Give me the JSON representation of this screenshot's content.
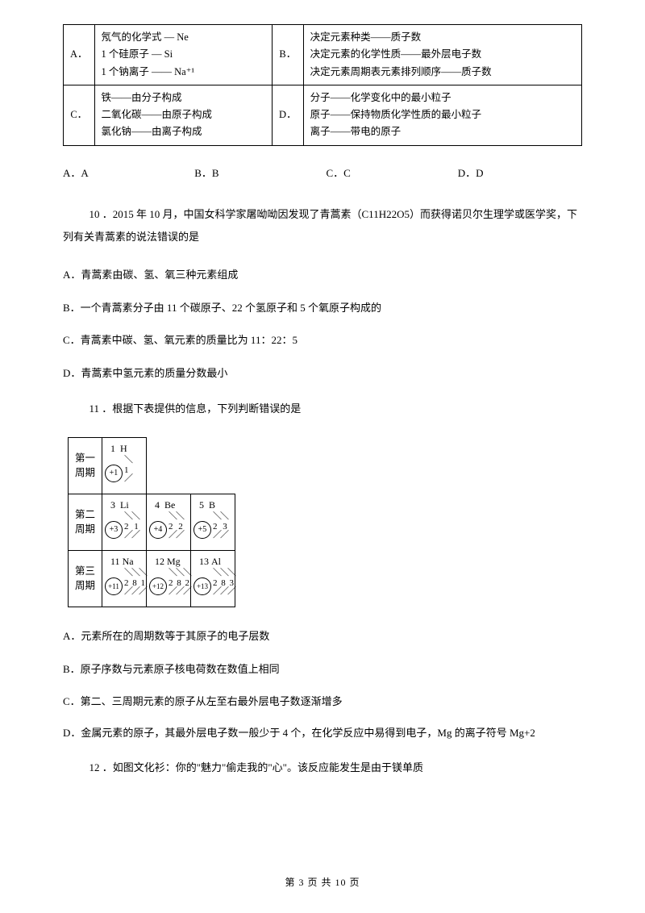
{
  "table1": {
    "cells": {
      "A_label": "A．",
      "A_content": "氖气的化学式 — Ne\n1 个硅原子 — Si\n1 个钠离子 —— Na⁺¹",
      "B_label": "B．",
      "B_content": "决定元素种类——质子数\n决定元素的化学性质——最外层电子数\n决定元素周期表元素排列顺序——质子数",
      "C_label": "C．",
      "C_content": "铁——由分子构成\n二氧化碳——由原子构成\n氯化钠——由离子构成",
      "D_label": "D．",
      "D_content": "分子——化学变化中的最小粒子\n原子——保持物质化学性质的最小粒子\n离子——带电的原子"
    }
  },
  "q9_options": {
    "A": "A．A",
    "B": "B．B",
    "C": "C．C",
    "D": "D．D"
  },
  "q10": {
    "stem": "10 ．2015 年 10 月，中国女科学家屠呦呦因发现了青蒿素（C11H22O5）而获得诺贝尔生理学或医学奖，下列有关青蒿素的说法错误的是",
    "A": "A．青蒿素由碳、氢、氧三种元素组成",
    "B": "B．一个青蒿素分子由 11 个碳原子、22 个氢原子和 5 个氧原子构成的",
    "C": "C．青蒿素中碳、氢、氧元素的质量比为 11：22：5",
    "D": "D．青蒿素中氢元素的质量分数最小"
  },
  "q11": {
    "stem": "11 ．根据下表提供的信息，下列判断错误的是",
    "periods": {
      "p1_label": "第一\n周期",
      "p2_label": "第二\n周期",
      "p3_label": "第三\n周期"
    },
    "elements": {
      "H": {
        "num": "1",
        "sym": "H",
        "nuc": "+1",
        "shells": "1"
      },
      "Li": {
        "num": "3",
        "sym": "Li",
        "nuc": "+3",
        "shells": "2 1"
      },
      "Be": {
        "num": "4",
        "sym": "Be",
        "nuc": "+4",
        "shells": "2 2"
      },
      "B": {
        "num": "5",
        "sym": "B",
        "nuc": "+5",
        "shells": "2 3"
      },
      "Na": {
        "num": "11",
        "sym": "Na",
        "nuc": "+11",
        "shells": "2 8 1"
      },
      "Mg": {
        "num": "12",
        "sym": "Mg",
        "nuc": "+12",
        "shells": "2 8 2"
      },
      "Al": {
        "num": "13",
        "sym": "Al",
        "nuc": "+13",
        "shells": "2 8 3"
      }
    },
    "A": "A．元素所在的周期数等于其原子的电子层数",
    "B": "B．原子序数与元素原子核电荷数在数值上相同",
    "C": "C．第二、三周期元素的原子从左至右最外层电子数逐渐增多",
    "D": "D．金属元素的原子，其最外层电子数一般少于 4 个，在化学反应中易得到电子，Mg 的离子符号 Mg+2"
  },
  "q12": {
    "stem": "12 ．如图文化衫：你的\"魅力\"偷走我的\"心\"。该反应能发生是由于镁单质"
  },
  "footer": "第 3 页 共 10 页"
}
